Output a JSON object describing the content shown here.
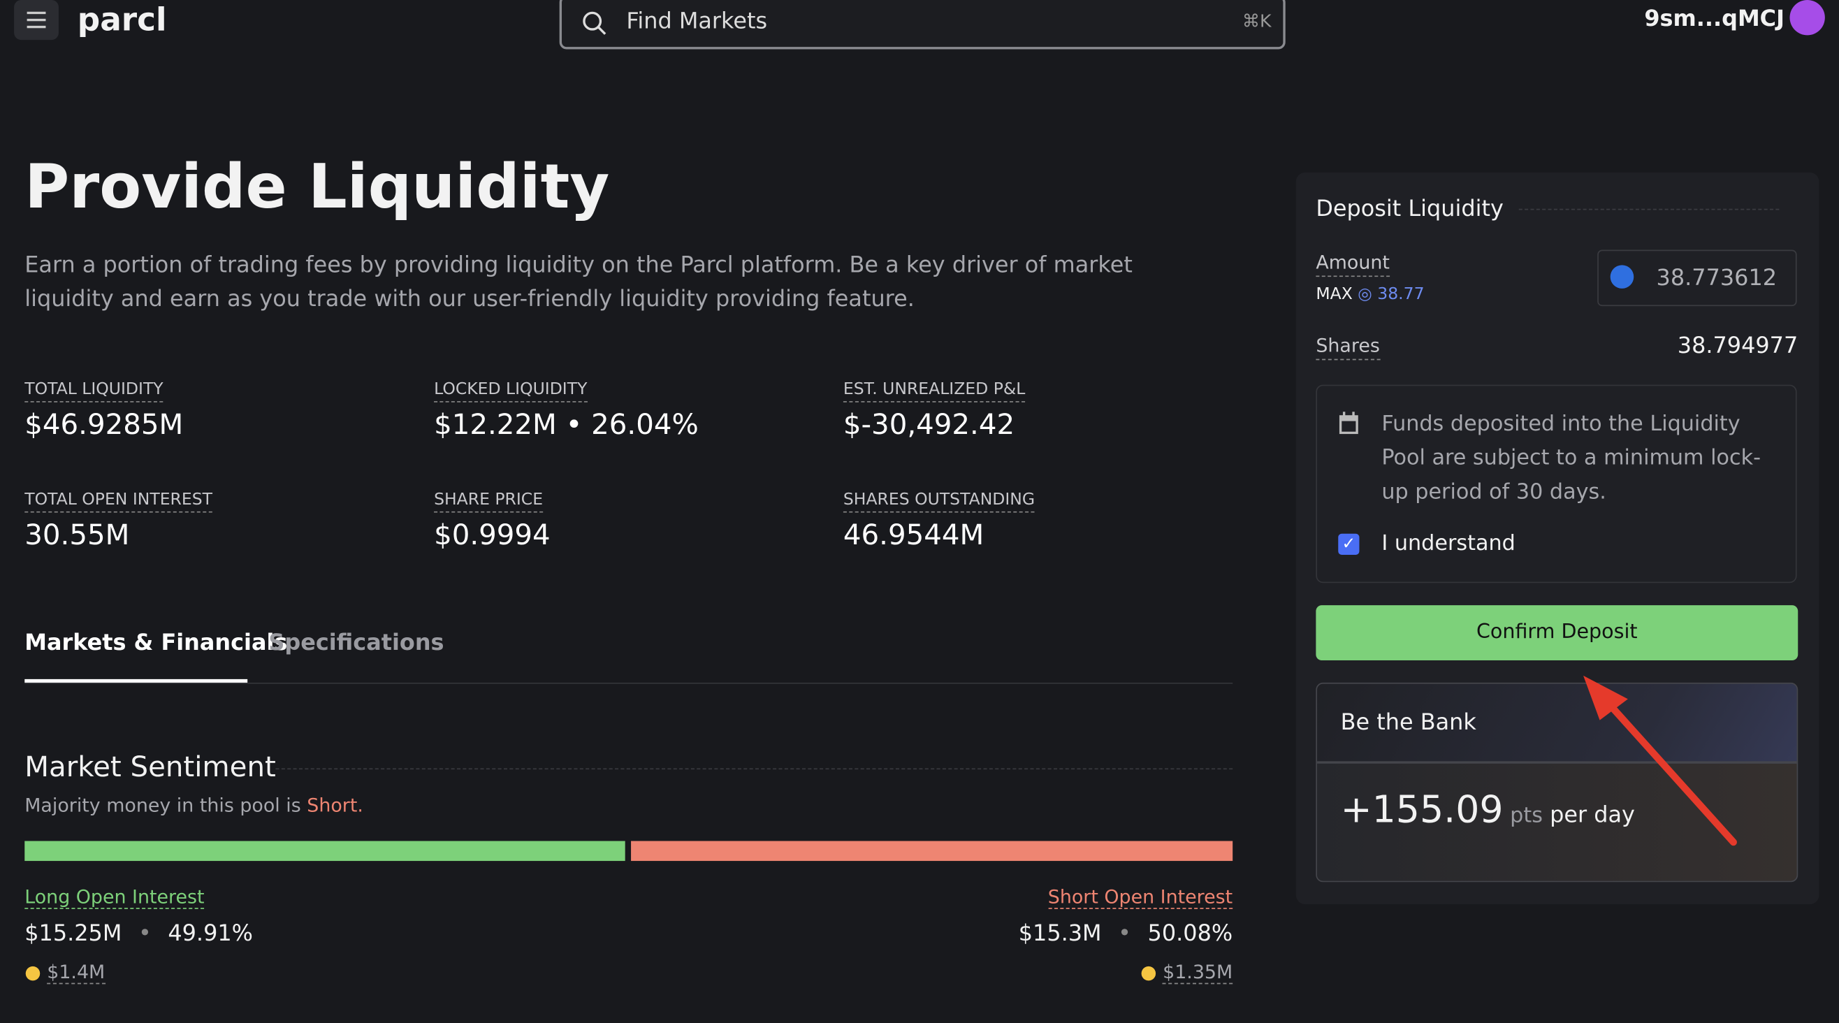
{
  "header": {
    "logo": "parcl",
    "search_placeholder": "Find Markets",
    "search_shortcut": "⌘K",
    "wallet": "9sm...qMCJ"
  },
  "main": {
    "title": "Provide Liquidity",
    "description": "Earn a portion of trading fees by providing liquidity on the Parcl platform. Be a key driver of market liquidity and earn as you trade with our user-friendly liquidity providing feature.",
    "stats": [
      {
        "label": "TOTAL LIQUIDITY",
        "value": "$46.9285M"
      },
      {
        "label": "LOCKED LIQUIDITY",
        "value": "$12.22M • 26.04%"
      },
      {
        "label": "EST. UNREALIZED P&L",
        "value": "$-30,492.42"
      },
      {
        "label": "TOTAL OPEN INTEREST",
        "value": "30.55M"
      },
      {
        "label": "SHARE PRICE",
        "value": "$0.9994"
      },
      {
        "label": "SHARES OUTSTANDING",
        "value": "46.9544M"
      }
    ],
    "tabs": [
      "Markets & Financials",
      "Specifications"
    ],
    "sentiment": {
      "title": "Market Sentiment",
      "subtitle": "Majority money in this pool is",
      "side": "Short.",
      "long": {
        "label": "Long Open Interest",
        "value": "$15.25M",
        "percent": "49.91%",
        "sub": "$1.4M"
      },
      "short": {
        "label": "Short Open Interest",
        "value": "$15.3M",
        "percent": "50.08%",
        "sub": "$1.35M"
      }
    }
  },
  "deposit": {
    "title": "Deposit Liquidity",
    "amount_label": "Amount",
    "max_label": "MAX",
    "max_value": "38.77",
    "amount": "38.773612",
    "shares_label": "Shares",
    "shares": "38.794977",
    "notice": "Funds deposited into the Liquidity Pool are subject to a minimum lock-up period of 30 days.",
    "checkbox": "I understand",
    "button": "Confirm Deposit",
    "promo": {
      "title": "Be the Bank",
      "points": "+155.09",
      "unit": "pts",
      "period": "per day"
    }
  }
}
